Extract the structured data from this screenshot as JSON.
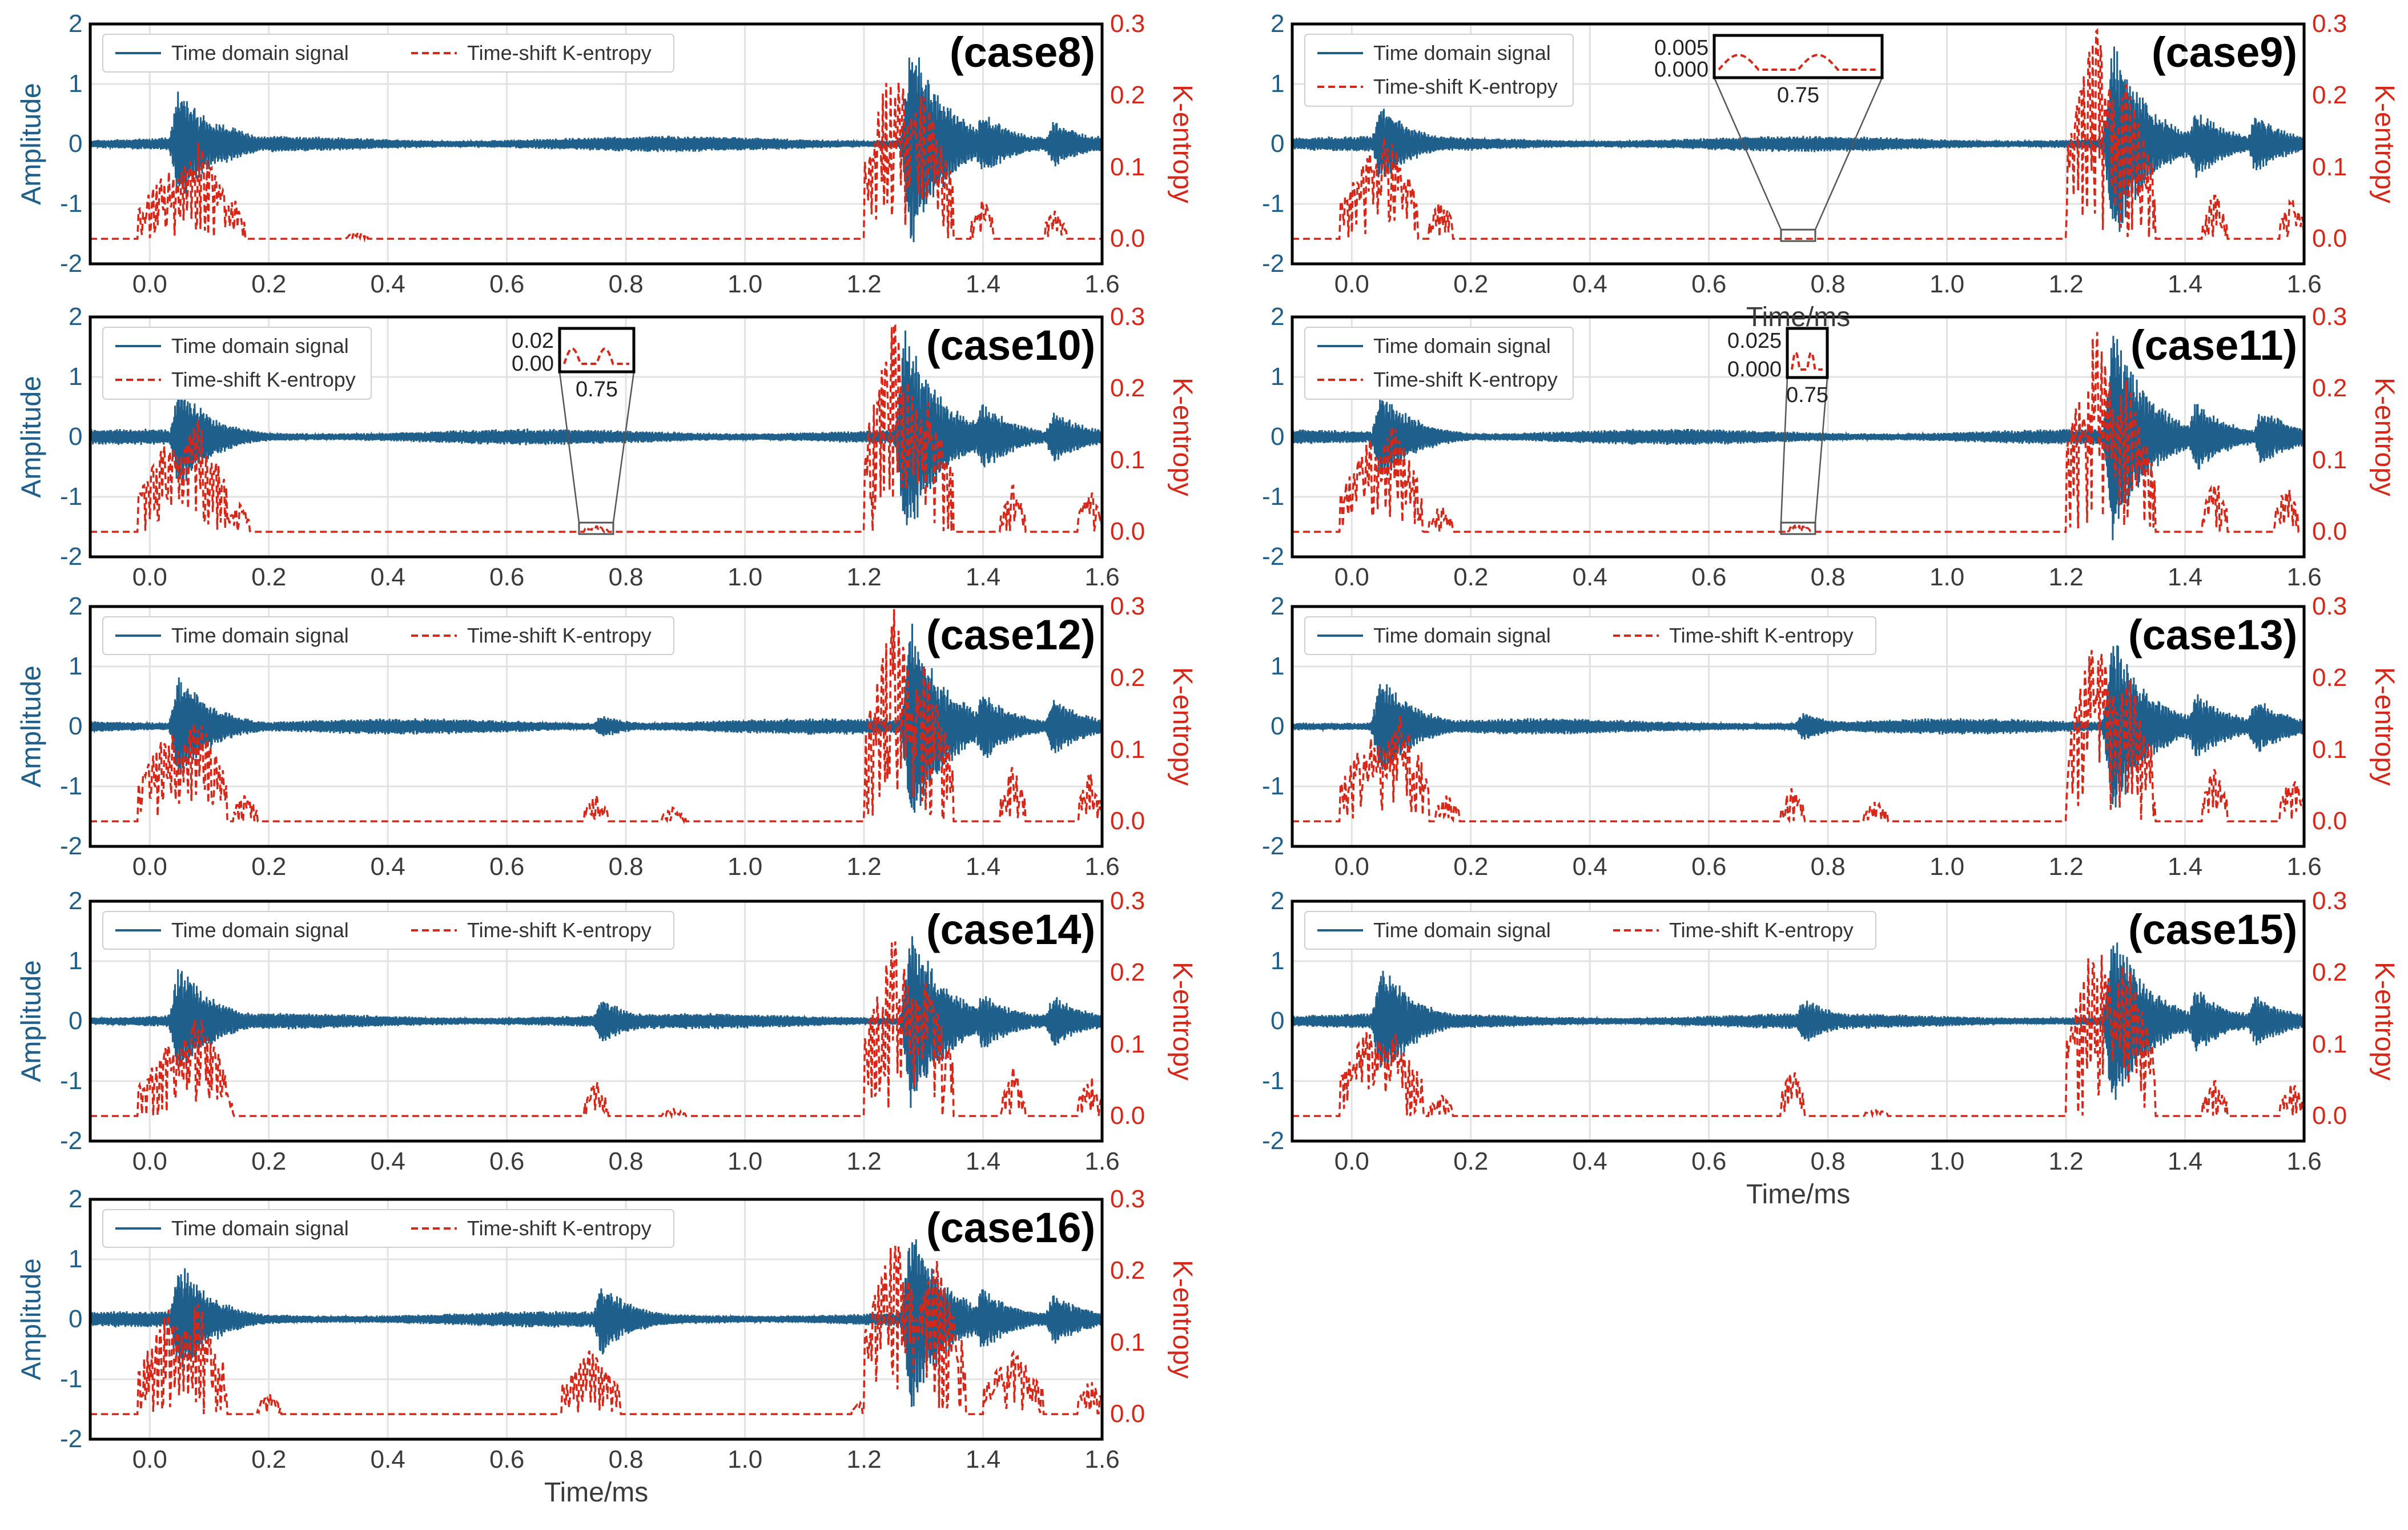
{
  "colors": {
    "signal": "#1f5f8b",
    "entropy": "#d62718",
    "grid": "#e2e2e2",
    "frame": "#000000"
  },
  "legend": {
    "signal_label": "Time domain signal",
    "entropy_label": "Time-shift K-entropy"
  },
  "axes": {
    "ylabel_left": "Amplitude",
    "ylabel_right": "K-entropy",
    "xlabel": "Time/ms",
    "x_ticks": [
      "0.0",
      "0.2",
      "0.4",
      "0.6",
      "0.8",
      "1.0",
      "1.2",
      "1.4",
      "1.6"
    ],
    "y_left_ticks": [
      "2",
      "1",
      "0",
      "-1",
      "-2"
    ],
    "y_right_ticks": [
      "0.3",
      "0.2",
      "0.1",
      "0.0"
    ]
  },
  "chart_data": [
    {
      "type": "line",
      "title": "(case8)",
      "xlabel": "",
      "ylabel": "Amplitude",
      "ylabel_right": "K-entropy",
      "xlim": [
        -0.1,
        1.6
      ],
      "ylim_left": [
        -2,
        2
      ],
      "ylim_right": [
        -0.035,
        0.3
      ],
      "legend_placement": "top-left",
      "grid": true,
      "series": [
        {
          "name": "Time domain signal",
          "axis": "left",
          "bursts": [
            {
              "t": 0.05,
              "amp": 1.0
            },
            {
              "t": 0.12,
              "amp": 0.4
            },
            {
              "t": 1.28,
              "amp": 1.8
            },
            {
              "t": 1.4,
              "amp": 0.55
            },
            {
              "t": 1.52,
              "amp": 0.4
            }
          ]
        },
        {
          "name": "Time-shift K-entropy",
          "axis": "right",
          "peaks": [
            {
              "t": 0.03,
              "v": 0.1
            },
            {
              "t": 0.08,
              "v": 0.14
            },
            {
              "t": 0.14,
              "v": 0.06
            },
            {
              "t": 0.35,
              "v": 0.01
            },
            {
              "t": 1.25,
              "v": 0.26
            },
            {
              "t": 1.3,
              "v": 0.21
            },
            {
              "t": 1.4,
              "v": 0.06
            },
            {
              "t": 1.52,
              "v": 0.04
            }
          ]
        }
      ],
      "inset": null
    },
    {
      "type": "line",
      "title": "(case9)",
      "xlabel": "Time/ms",
      "ylabel": "Amplitude",
      "ylabel_right": "K-entropy",
      "xlim": [
        -0.1,
        1.6
      ],
      "ylim_left": [
        -2,
        2
      ],
      "ylim_right": [
        -0.035,
        0.3
      ],
      "legend_placement": "top-left",
      "grid": true,
      "series": [
        {
          "name": "Time domain signal",
          "axis": "left",
          "bursts": [
            {
              "t": 0.05,
              "amp": 0.7
            },
            {
              "t": 1.28,
              "amp": 1.8
            },
            {
              "t": 1.42,
              "amp": 0.6
            },
            {
              "t": 1.52,
              "amp": 0.5
            }
          ]
        },
        {
          "name": "Time-shift K-entropy",
          "axis": "right",
          "peaks": [
            {
              "t": 0.03,
              "v": 0.12
            },
            {
              "t": 0.06,
              "v": 0.15
            },
            {
              "t": 0.15,
              "v": 0.06
            },
            {
              "t": 1.25,
              "v": 0.3
            },
            {
              "t": 1.3,
              "v": 0.22
            },
            {
              "t": 1.45,
              "v": 0.07
            },
            {
              "t": 1.58,
              "v": 0.06
            }
          ]
        }
      ],
      "inset": {
        "x_center": 0.75,
        "y_ticks": [
          "0.005",
          "0.000"
        ],
        "x_tick": "0.75"
      }
    },
    {
      "type": "line",
      "title": "(case10)",
      "xlabel": "",
      "ylabel": "Amplitude",
      "ylabel_right": "K-entropy",
      "xlim": [
        -0.1,
        1.6
      ],
      "ylim_left": [
        -2,
        2
      ],
      "ylim_right": [
        -0.035,
        0.3
      ],
      "legend_placement": "top-left",
      "grid": true,
      "series": [
        {
          "name": "Time domain signal",
          "axis": "left",
          "bursts": [
            {
              "t": 0.05,
              "amp": 0.9
            },
            {
              "t": 1.27,
              "amp": 1.9
            },
            {
              "t": 1.4,
              "amp": 0.6
            },
            {
              "t": 1.52,
              "amp": 0.45
            }
          ]
        },
        {
          "name": "Time-shift K-entropy",
          "axis": "right",
          "peaks": [
            {
              "t": 0.03,
              "v": 0.13
            },
            {
              "t": 0.08,
              "v": 0.16
            },
            {
              "t": 0.15,
              "v": 0.04
            },
            {
              "t": 0.75,
              "v": 0.008
            },
            {
              "t": 1.25,
              "v": 0.3
            },
            {
              "t": 1.3,
              "v": 0.2
            },
            {
              "t": 1.45,
              "v": 0.07
            },
            {
              "t": 1.58,
              "v": 0.06
            }
          ]
        }
      ],
      "inset": {
        "x_center": 0.75,
        "y_ticks": [
          "0.02",
          "0.00"
        ],
        "x_tick": "0.75"
      }
    },
    {
      "type": "line",
      "title": "(case11)",
      "xlabel": "",
      "ylabel": "Amplitude",
      "ylabel_right": "K-entropy",
      "xlim": [
        -0.1,
        1.6
      ],
      "ylim_left": [
        -2,
        2
      ],
      "ylim_right": [
        -0.035,
        0.3
      ],
      "legend_placement": "top-left",
      "grid": true,
      "series": [
        {
          "name": "Time domain signal",
          "axis": "left",
          "bursts": [
            {
              "t": 0.05,
              "amp": 0.8
            },
            {
              "t": 1.28,
              "amp": 1.9
            },
            {
              "t": 1.42,
              "amp": 0.6
            },
            {
              "t": 1.53,
              "amp": 0.5
            }
          ]
        },
        {
          "name": "Time-shift K-entropy",
          "axis": "right",
          "peaks": [
            {
              "t": 0.03,
              "v": 0.13
            },
            {
              "t": 0.07,
              "v": 0.15
            },
            {
              "t": 0.15,
              "v": 0.04
            },
            {
              "t": 0.75,
              "v": 0.01
            },
            {
              "t": 1.25,
              "v": 0.29
            },
            {
              "t": 1.3,
              "v": 0.22
            },
            {
              "t": 1.45,
              "v": 0.08
            },
            {
              "t": 1.57,
              "v": 0.07
            }
          ]
        }
      ],
      "inset": {
        "x_center": 0.75,
        "y_ticks": [
          "0.025",
          "0.000"
        ],
        "x_tick": "0.75"
      }
    },
    {
      "type": "line",
      "title": "(case12)",
      "xlabel": "",
      "ylabel": "Amplitude",
      "ylabel_right": "K-entropy",
      "xlim": [
        -0.1,
        1.6
      ],
      "ylim_left": [
        -2,
        2
      ],
      "ylim_right": [
        -0.035,
        0.3
      ],
      "legend_placement": "top-left",
      "grid": true,
      "series": [
        {
          "name": "Time domain signal",
          "axis": "left",
          "bursts": [
            {
              "t": 0.05,
              "amp": 0.9
            },
            {
              "t": 0.76,
              "amp": 0.2
            },
            {
              "t": 1.28,
              "amp": 1.8
            },
            {
              "t": 1.4,
              "amp": 0.6
            },
            {
              "t": 1.52,
              "amp": 0.5
            }
          ]
        },
        {
          "name": "Time-shift K-entropy",
          "axis": "right",
          "peaks": [
            {
              "t": 0.03,
              "v": 0.13
            },
            {
              "t": 0.08,
              "v": 0.15
            },
            {
              "t": 0.16,
              "v": 0.04
            },
            {
              "t": 0.75,
              "v": 0.04
            },
            {
              "t": 0.88,
              "v": 0.02
            },
            {
              "t": 1.25,
              "v": 0.3
            },
            {
              "t": 1.3,
              "v": 0.22
            },
            {
              "t": 1.45,
              "v": 0.08
            },
            {
              "t": 1.58,
              "v": 0.07
            }
          ]
        }
      ],
      "inset": null
    },
    {
      "type": "line",
      "title": "(case13)",
      "xlabel": "",
      "ylabel": "Amplitude",
      "ylabel_right": "K-entropy",
      "xlim": [
        -0.1,
        1.6
      ],
      "ylim_left": [
        -2,
        2
      ],
      "ylim_right": [
        -0.035,
        0.3
      ],
      "legend_placement": "top-left",
      "grid": true,
      "series": [
        {
          "name": "Time domain signal",
          "axis": "left",
          "bursts": [
            {
              "t": 0.05,
              "amp": 0.9
            },
            {
              "t": 0.76,
              "amp": 0.25
            },
            {
              "t": 1.28,
              "amp": 1.6
            },
            {
              "t": 1.42,
              "amp": 0.6
            },
            {
              "t": 1.52,
              "amp": 0.5
            }
          ]
        },
        {
          "name": "Time-shift K-entropy",
          "axis": "right",
          "peaks": [
            {
              "t": 0.03,
              "v": 0.13
            },
            {
              "t": 0.08,
              "v": 0.15
            },
            {
              "t": 0.16,
              "v": 0.04
            },
            {
              "t": 0.74,
              "v": 0.05
            },
            {
              "t": 0.88,
              "v": 0.03
            },
            {
              "t": 1.25,
              "v": 0.27
            },
            {
              "t": 1.3,
              "v": 0.22
            },
            {
              "t": 1.45,
              "v": 0.08
            },
            {
              "t": 1.58,
              "v": 0.07
            }
          ]
        }
      ],
      "inset": null
    },
    {
      "type": "line",
      "title": "(case14)",
      "xlabel": "",
      "ylabel": "Amplitude",
      "ylabel_right": "K-entropy",
      "xlim": [
        -0.1,
        1.6
      ],
      "ylim_left": [
        -2,
        2
      ],
      "ylim_right": [
        -0.035,
        0.3
      ],
      "legend_placement": "top-left",
      "grid": true,
      "series": [
        {
          "name": "Time domain signal",
          "axis": "left",
          "bursts": [
            {
              "t": 0.05,
              "amp": 1.0
            },
            {
              "t": 0.76,
              "amp": 0.4
            },
            {
              "t": 1.28,
              "amp": 1.6
            },
            {
              "t": 1.4,
              "amp": 0.5
            },
            {
              "t": 1.52,
              "amp": 0.45
            }
          ]
        },
        {
          "name": "Time-shift K-entropy",
          "axis": "right",
          "peaks": [
            {
              "t": 0.03,
              "v": 0.1
            },
            {
              "t": 0.08,
              "v": 0.15
            },
            {
              "t": 0.12,
              "v": 0.05
            },
            {
              "t": 0.75,
              "v": 0.05
            },
            {
              "t": 0.88,
              "v": 0.01
            },
            {
              "t": 1.25,
              "v": 0.26
            },
            {
              "t": 1.3,
              "v": 0.2
            },
            {
              "t": 1.45,
              "v": 0.07
            },
            {
              "t": 1.58,
              "v": 0.06
            }
          ]
        }
      ],
      "inset": null
    },
    {
      "type": "line",
      "title": "(case15)",
      "xlabel": "Time/ms",
      "ylabel": "Amplitude",
      "ylabel_right": "K-entropy",
      "xlim": [
        -0.1,
        1.6
      ],
      "ylim_left": [
        -2,
        2
      ],
      "ylim_right": [
        -0.035,
        0.3
      ],
      "legend_placement": "top-left",
      "grid": true,
      "series": [
        {
          "name": "Time domain signal",
          "axis": "left",
          "bursts": [
            {
              "t": 0.05,
              "amp": 1.0
            },
            {
              "t": 0.76,
              "amp": 0.4
            },
            {
              "t": 1.28,
              "amp": 1.6
            },
            {
              "t": 1.42,
              "amp": 0.55
            },
            {
              "t": 1.52,
              "amp": 0.45
            }
          ]
        },
        {
          "name": "Time-shift K-entropy",
          "axis": "right",
          "peaks": [
            {
              "t": 0.03,
              "v": 0.13
            },
            {
              "t": 0.07,
              "v": 0.12
            },
            {
              "t": 0.15,
              "v": 0.03
            },
            {
              "t": 0.74,
              "v": 0.07
            },
            {
              "t": 0.88,
              "v": 0.01
            },
            {
              "t": 1.25,
              "v": 0.26
            },
            {
              "t": 1.3,
              "v": 0.22
            },
            {
              "t": 1.45,
              "v": 0.05
            },
            {
              "t": 1.58,
              "v": 0.05
            }
          ]
        }
      ],
      "inset": null
    },
    {
      "type": "line",
      "title": "(case16)",
      "xlabel": "Time/ms",
      "ylabel": "Amplitude",
      "ylabel_right": "K-entropy",
      "xlim": [
        -0.1,
        1.6
      ],
      "ylim_left": [
        -2,
        2
      ],
      "ylim_right": [
        -0.035,
        0.3
      ],
      "legend_placement": "top-left",
      "grid": true,
      "series": [
        {
          "name": "Time domain signal",
          "axis": "left",
          "bursts": [
            {
              "t": 0.05,
              "amp": 1.0
            },
            {
              "t": 0.76,
              "amp": 0.6
            },
            {
              "t": 1.28,
              "amp": 1.6
            },
            {
              "t": 1.4,
              "amp": 0.55
            },
            {
              "t": 1.52,
              "amp": 0.45
            }
          ]
        },
        {
          "name": "Time-shift K-entropy",
          "axis": "right",
          "peaks": [
            {
              "t": 0.03,
              "v": 0.15
            },
            {
              "t": 0.08,
              "v": 0.16
            },
            {
              "t": 0.2,
              "v": 0.03
            },
            {
              "t": 0.74,
              "v": 0.09
            },
            {
              "t": 1.2,
              "v": 0.02
            },
            {
              "t": 1.25,
              "v": 0.27
            },
            {
              "t": 1.32,
              "v": 0.22
            },
            {
              "t": 1.45,
              "v": 0.09
            },
            {
              "t": 1.58,
              "v": 0.05
            }
          ]
        }
      ],
      "inset": null
    }
  ]
}
